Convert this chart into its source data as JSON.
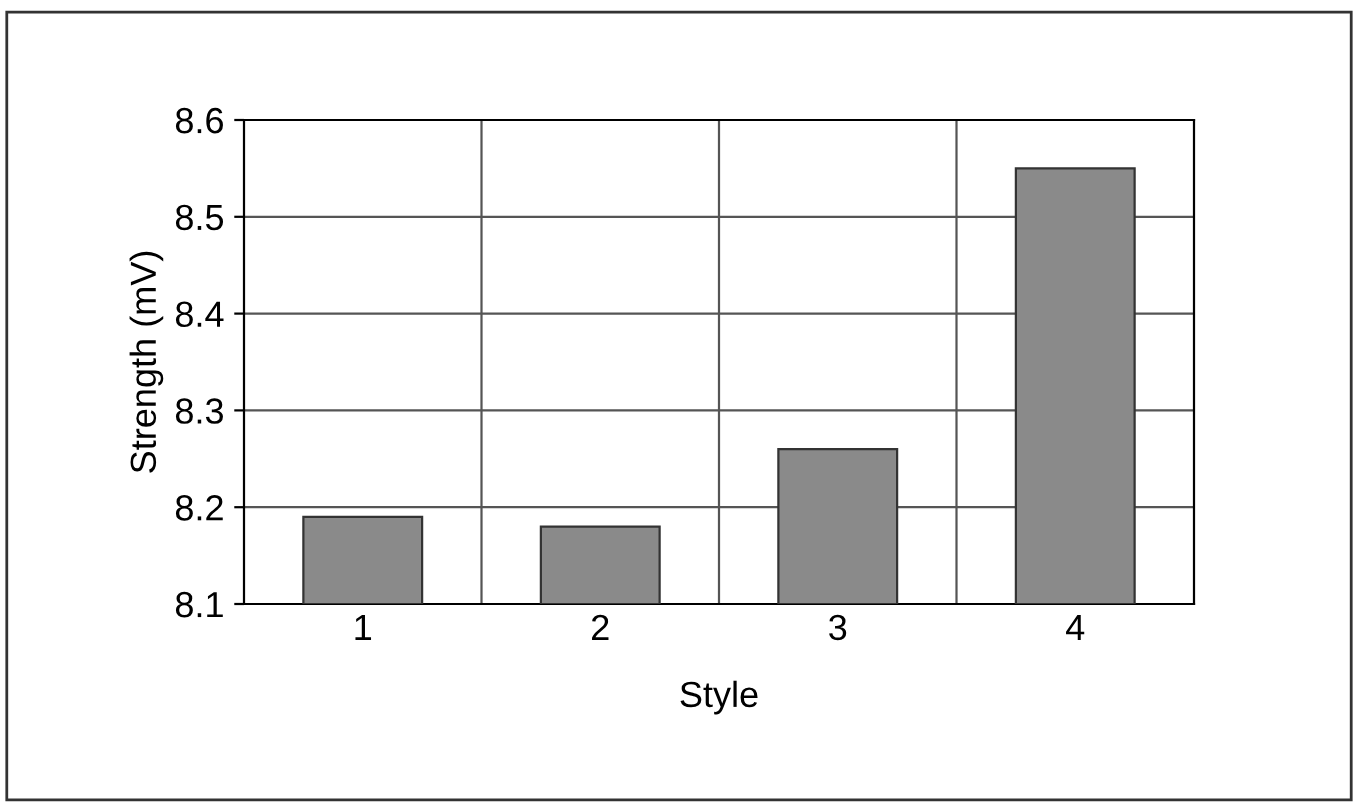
{
  "chart_data": {
    "type": "bar",
    "xlabel": "Style",
    "ylabel": "Strength (mV)",
    "categories": [
      "1",
      "2",
      "3",
      "4"
    ],
    "values": [
      8.19,
      8.18,
      8.26,
      8.55
    ],
    "color": "#8a8a8a",
    "ylim": [
      8.1,
      8.6
    ],
    "yticks": [
      {
        "value": 8.1,
        "label": "8.1"
      },
      {
        "value": 8.2,
        "label": "8.2"
      },
      {
        "value": 8.3,
        "label": "8.3"
      },
      {
        "value": 8.4,
        "label": "8.4"
      },
      {
        "value": 8.5,
        "label": "8.5"
      },
      {
        "value": 8.6,
        "label": "8.6"
      }
    ],
    "grid": true
  }
}
